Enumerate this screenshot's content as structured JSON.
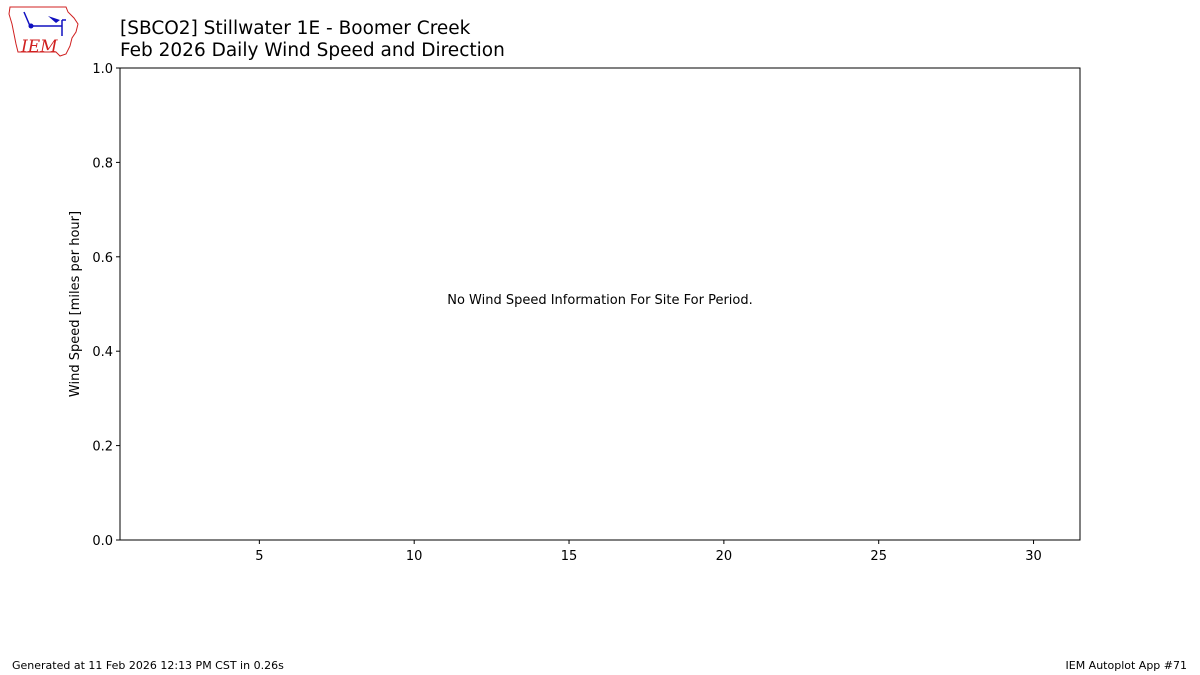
{
  "header": {
    "title_line1": "[SBCO2] Stillwater 1E - Boomer Creek",
    "title_line2": "Feb 2026 Daily Wind Speed and Direction",
    "logo_text": "IEM"
  },
  "chart_data": {
    "type": "bar",
    "title": "[SBCO2] Stillwater 1E - Boomer Creek\nFeb 2026 Daily Wind Speed and Direction",
    "xlabel": "",
    "ylabel": "Wind Speed [miles per hour]",
    "xlim": [
      0.5,
      31.5
    ],
    "ylim": [
      0,
      1
    ],
    "xticks": [
      5,
      10,
      15,
      20,
      25,
      30
    ],
    "yticks": [
      "0.0",
      "0.2",
      "0.4",
      "0.6",
      "0.8",
      "1.0"
    ],
    "grid": false,
    "series": [],
    "annotation": "No Wind Speed Information For Site For Period."
  },
  "footer": {
    "generated": "Generated at 11 Feb 2026 12:13 PM CST in 0.26s",
    "app": "IEM Autoplot App #71"
  },
  "colors": {
    "logo_red": "#d02020",
    "logo_blue": "#1010c0"
  }
}
